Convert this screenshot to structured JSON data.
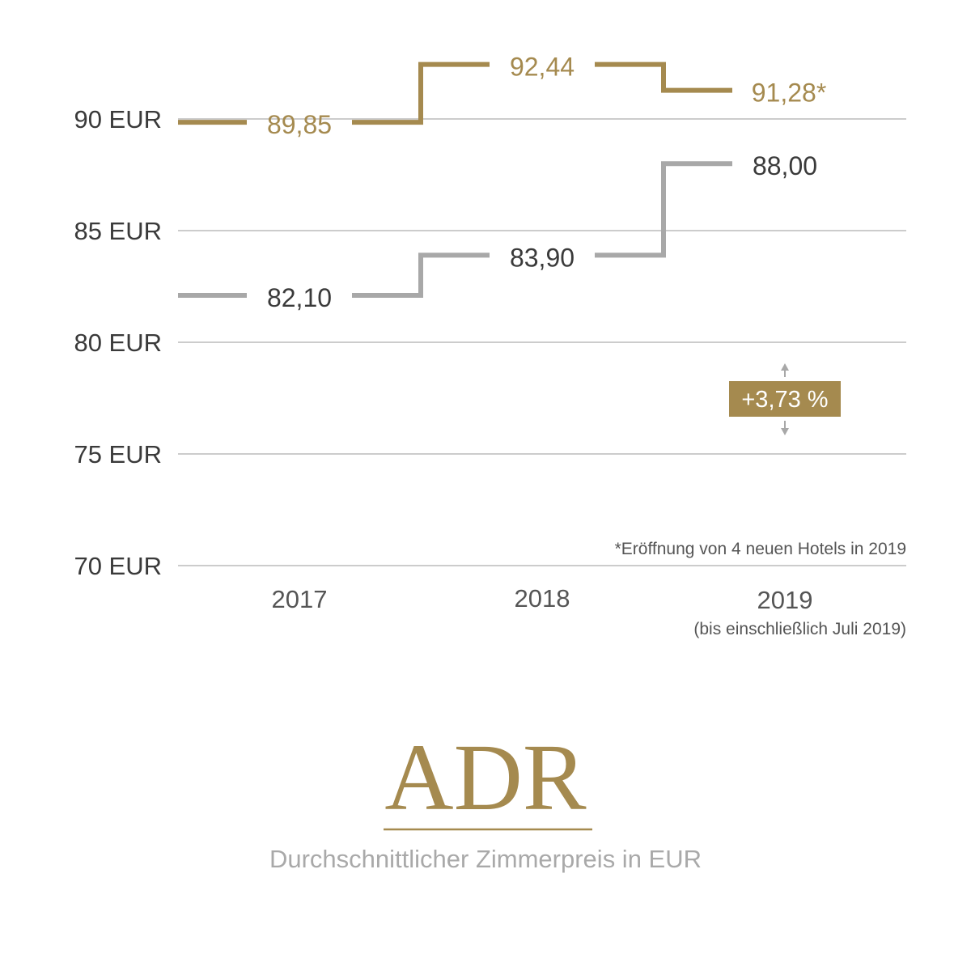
{
  "colors": {
    "gold": "#a58a4f",
    "gray": "#a8a8a8",
    "grid": "#9a9a9a",
    "text_dark": "#3a3a3a"
  },
  "chart_data": {
    "type": "line",
    "step": true,
    "categories": [
      "2017",
      "2018",
      "2019"
    ],
    "x_sublabels": [
      "",
      "",
      "(bis einschließlich Juli 2019)"
    ],
    "yticks": [
      90,
      85,
      80,
      75,
      70
    ],
    "ytick_labels": [
      "90 EUR",
      "85 EUR",
      "80 EUR",
      "75 EUR",
      "70 EUR"
    ],
    "ylim": [
      70,
      92.44
    ],
    "grid": true,
    "series": [
      {
        "color": "#a58a4f",
        "values": [
          89.85,
          92.44,
          91.28
        ],
        "value_labels": [
          "89,85",
          "92,44",
          "91,28*"
        ]
      },
      {
        "color": "#a8a8a8",
        "values": [
          82.1,
          83.9,
          88.0
        ],
        "value_labels": [
          "82,10",
          "83,90",
          "88,00"
        ]
      }
    ],
    "annotation": {
      "badge_text": "+3,73 %",
      "badge_color": "#a58a4f",
      "category": "2019"
    },
    "footnote": "*Eröffnung von 4 neuen Hotels in 2019",
    "title": "ADR",
    "subtitle": "Durchschnittlicher Zimmerpreis in EUR"
  }
}
